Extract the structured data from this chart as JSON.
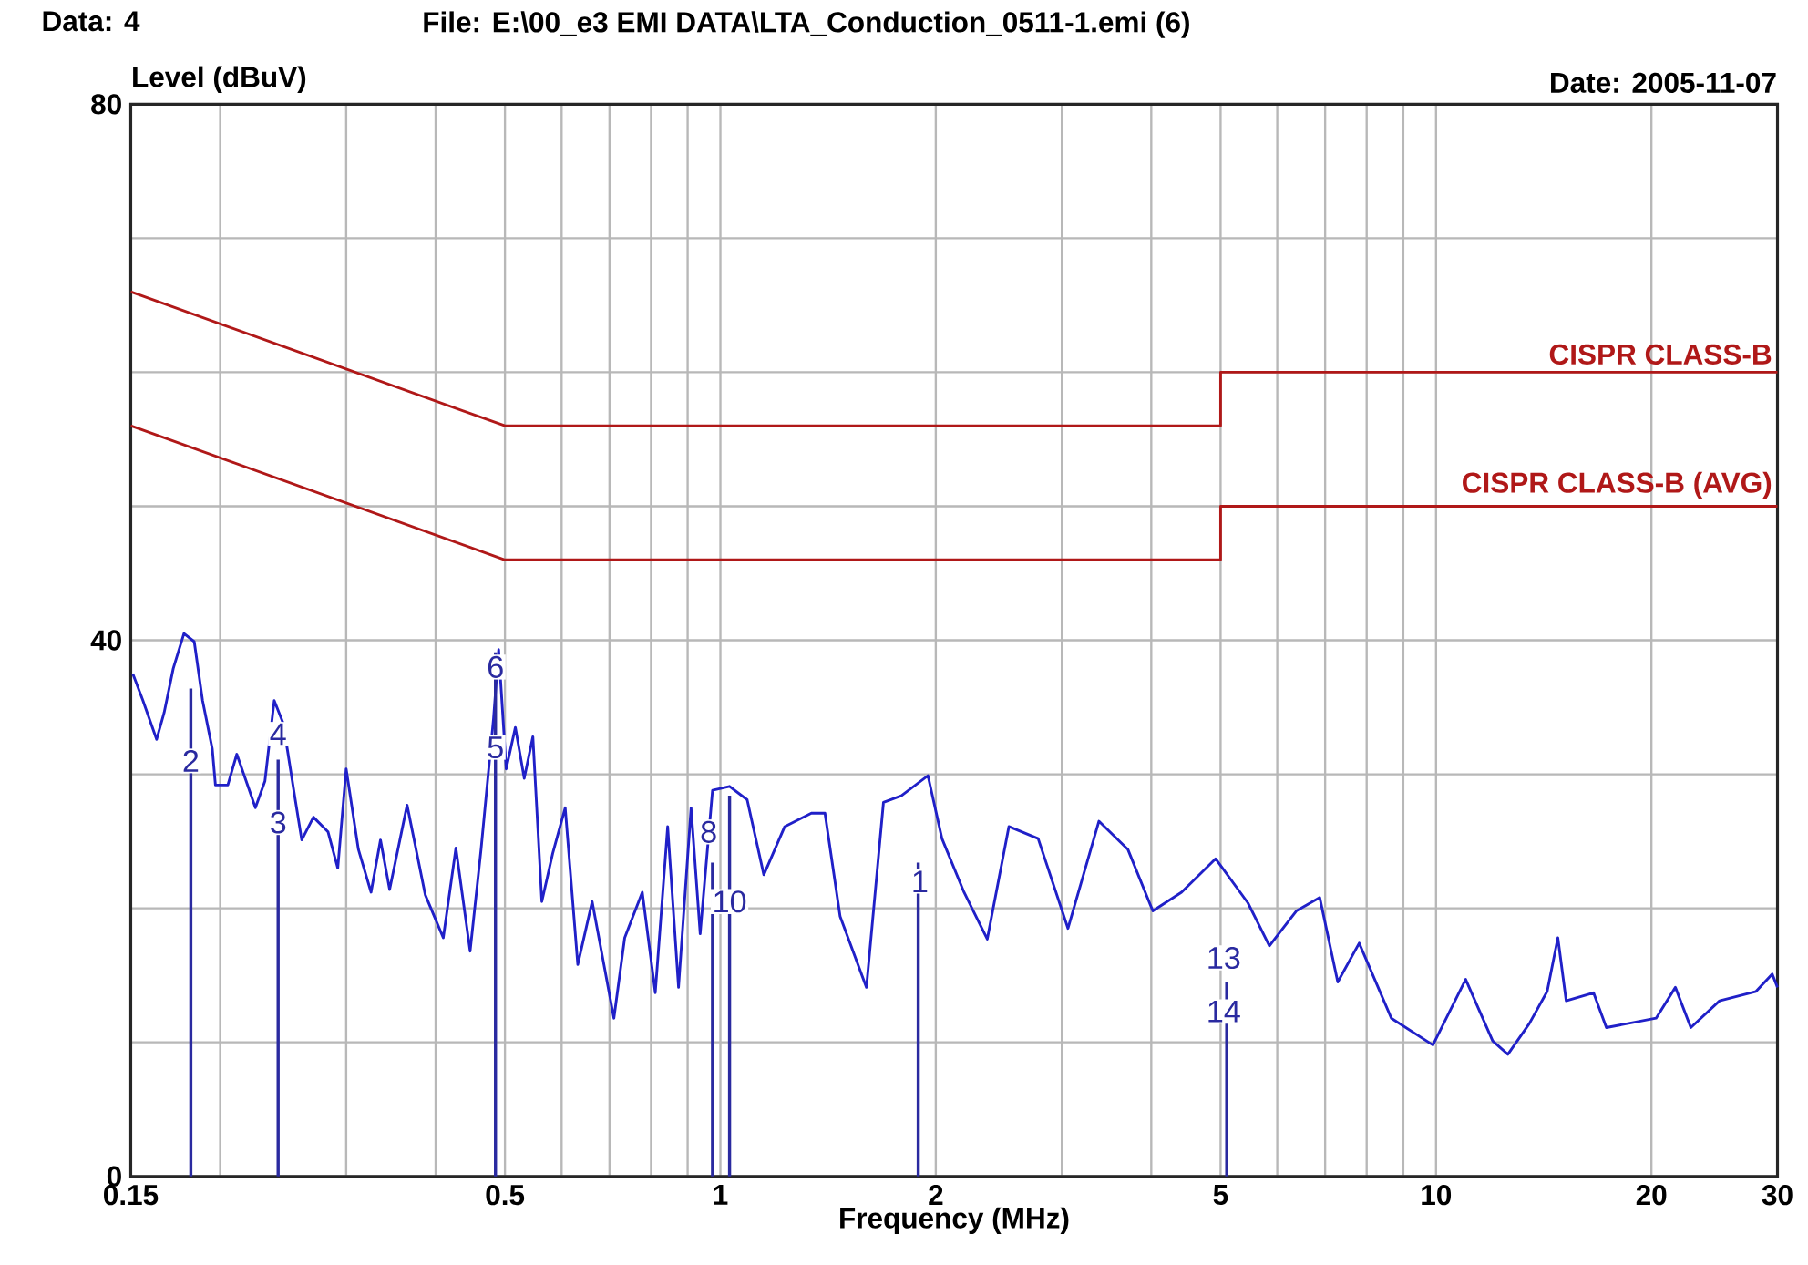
{
  "chart_data": {
    "type": "line",
    "title": "File: E:\\00_e3 EMI DATA\\LTA_Conduction_0511-1.emi  (6)",
    "xlabel": "Frequency (MHz)",
    "ylabel": "Level (dBuV)",
    "annotations": [
      "Data: 4",
      "Date: 2005-11-07",
      {
        "text": "2",
        "x": 0.182,
        "y": 31
      },
      {
        "text": "4",
        "x": 0.241,
        "y": 33
      },
      {
        "text": "3",
        "x": 0.241,
        "y": 26.4
      },
      {
        "text": "6",
        "x": 0.485,
        "y": 38
      },
      {
        "text": "5",
        "x": 0.485,
        "y": 32
      },
      {
        "text": "8",
        "x": 0.963,
        "y": 25.7
      },
      {
        "text": "10",
        "x": 1.03,
        "y": 20.5
      },
      {
        "text": "1",
        "x": 1.9,
        "y": 22
      },
      {
        "text": "13",
        "x": 5.05,
        "y": 16.3
      },
      {
        "text": "14",
        "x": 5.05,
        "y": 12.3
      }
    ],
    "log": "x",
    "xlim": [
      0.15,
      30
    ],
    "ylim": [
      0,
      80
    ],
    "xticks": [
      0.15,
      {
        "value": 0.2,
        "label": null
      },
      {
        "value": 0.3,
        "label": null
      },
      {
        "value": 0.4,
        "label": null
      },
      0.5,
      {
        "value": 0.6,
        "label": null
      },
      {
        "value": 0.7,
        "label": null
      },
      {
        "value": 0.8,
        "label": null
      },
      {
        "value": 0.9,
        "label": null
      },
      1,
      2,
      {
        "value": 3,
        "label": null
      },
      {
        "value": 4,
        "label": null
      },
      5,
      {
        "value": 6,
        "label": null
      },
      {
        "value": 7,
        "label": null
      },
      {
        "value": 8,
        "label": null
      },
      {
        "value": 9,
        "label": null
      },
      10,
      20,
      30
    ],
    "yticks": [
      0,
      {
        "value": 10,
        "label": null
      },
      {
        "value": 20,
        "label": null
      },
      {
        "value": 30,
        "label": null
      },
      40,
      {
        "value": 50,
        "label": null
      },
      {
        "value": 60,
        "label": null
      },
      {
        "value": 70,
        "label": null
      },
      80
    ],
    "grid": true,
    "series": [
      {
        "color": "#2020c8",
        "x": [
          0.151,
          0.156,
          0.163,
          0.167,
          0.172,
          0.178,
          0.184,
          0.189,
          0.195,
          0.197,
          0.205,
          0.211,
          0.224,
          0.231,
          0.238,
          0.245,
          0.255,
          0.26,
          0.27,
          0.283,
          0.292,
          0.3,
          0.312,
          0.325,
          0.335,
          0.345,
          0.365,
          0.387,
          0.41,
          0.427,
          0.447,
          0.463,
          0.482,
          0.49,
          0.502,
          0.517,
          0.532,
          0.547,
          0.563,
          0.583,
          0.607,
          0.632,
          0.662,
          0.71,
          0.735,
          0.778,
          0.811,
          0.844,
          0.874,
          0.91,
          0.937,
          0.975,
          1.03,
          1.09,
          1.15,
          1.23,
          1.34,
          1.4,
          1.47,
          1.6,
          1.69,
          1.79,
          1.95,
          2.04,
          2.19,
          2.36,
          2.53,
          2.78,
          3.06,
          3.38,
          3.71,
          4.02,
          4.41,
          4.92,
          5.46,
          5.85,
          6.38,
          6.88,
          7.29,
          7.81,
          8.66,
          9.9,
          11.0,
          12.0,
          12.6,
          13.5,
          14.3,
          14.8,
          15.2,
          16.6,
          17.3,
          20.3,
          21.6,
          22.7,
          24.9,
          28.0,
          29.5,
          30
        ],
        "values": [
          37.5,
          35.5,
          32.6,
          34.6,
          37.9,
          40.5,
          39.9,
          35.5,
          31.9,
          29.2,
          29.2,
          31.5,
          27.5,
          29.5,
          35.5,
          33.8,
          27.9,
          25.1,
          26.8,
          25.7,
          23.0,
          30.4,
          24.4,
          21.2,
          25.1,
          21.4,
          27.7,
          21.0,
          17.8,
          24.5,
          16.8,
          24.4,
          34.2,
          39.3,
          30.4,
          33.5,
          29.7,
          32.8,
          20.5,
          24.1,
          27.5,
          15.8,
          20.5,
          11.8,
          17.8,
          21.2,
          13.7,
          26.1,
          14.1,
          27.5,
          18.1,
          28.8,
          29.1,
          28.1,
          22.5,
          26.1,
          27.1,
          27.1,
          19.4,
          14.1,
          27.9,
          28.4,
          29.9,
          25.2,
          21.2,
          17.7,
          26.1,
          25.2,
          18.5,
          26.5,
          24.4,
          19.8,
          21.2,
          23.7,
          20.4,
          17.2,
          19.8,
          20.8,
          14.5,
          17.4,
          11.8,
          9.8,
          14.7,
          10.1,
          9.1,
          11.4,
          13.8,
          17.8,
          13.1,
          13.7,
          11.1,
          11.8,
          14.1,
          11.1,
          13.1,
          13.8,
          15.1,
          14.1
        ]
      },
      {
        "name": "CISPR CLASS-B",
        "color": "#b01818",
        "x": [
          0.15,
          0.5,
          5,
          5,
          30
        ],
        "values": [
          66,
          56,
          56,
          60,
          60
        ]
      },
      {
        "name": "CISPR CLASS-B (AVG)",
        "color": "#b01818",
        "x": [
          0.15,
          0.5,
          5,
          5,
          30
        ],
        "values": [
          56,
          46,
          46,
          50,
          50
        ]
      },
      {
        "type": "bar",
        "color": "#2a2aa0",
        "x": [
          0.182,
          0.241,
          0.485,
          0.975,
          1.03,
          1.89,
          5.1
        ],
        "values": [
          36.4,
          31.1,
          39.1,
          23.4,
          28.4,
          23.4,
          14.5
        ]
      }
    ]
  }
}
